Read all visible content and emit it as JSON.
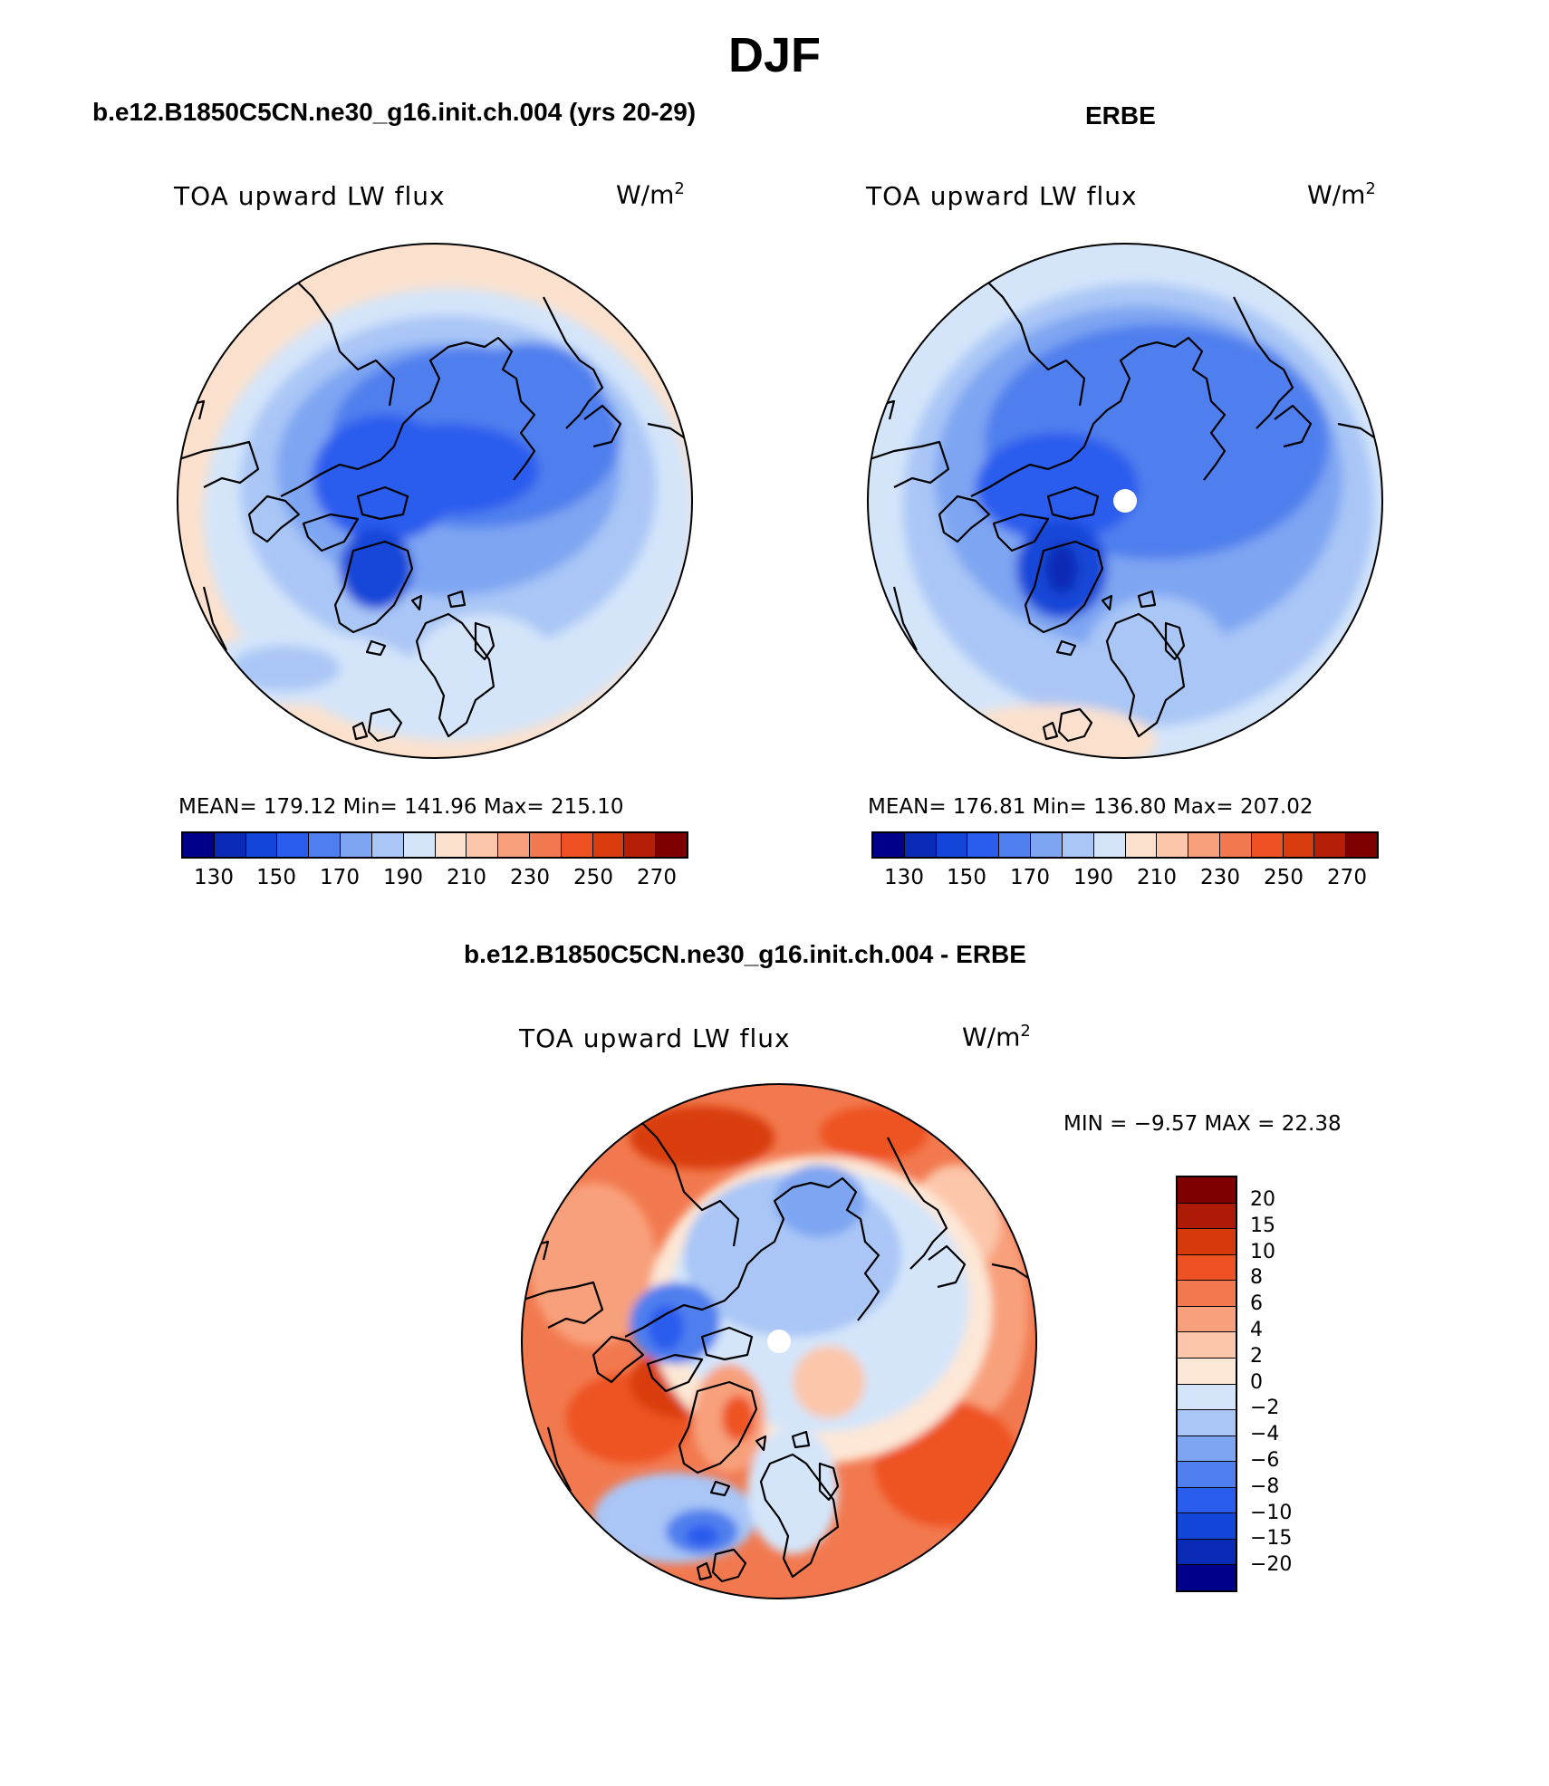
{
  "title": "DJF",
  "panels": {
    "model": {
      "title": "b.e12.B1850C5CN.ne30_g16.init.ch.004 (yrs 20-29)",
      "variable": "TOA upward LW flux",
      "units": "W/m",
      "units_sup": "2",
      "stats": "MEAN= 179.12   Min= 141.96   Max= 215.10"
    },
    "obs": {
      "title": "ERBE",
      "variable": "TOA upward LW flux",
      "units": "W/m",
      "units_sup": "2",
      "stats": "MEAN= 176.81   Min= 136.80   Max= 207.02"
    },
    "diff": {
      "title": "b.e12.B1850C5CN.ne30_g16.init.ch.004 - ERBE",
      "variable": "TOA upward LW flux",
      "units": "W/m",
      "units_sup": "2",
      "minmax": "MIN =   −9.57  MAX =   22.38"
    }
  },
  "colorbar_main": {
    "ticks": [
      "130",
      "150",
      "170",
      "190",
      "210",
      "230",
      "250",
      "270"
    ],
    "colors": [
      "#00008a",
      "#0a2bb5",
      "#1346d8",
      "#2a5cee",
      "#4f7fee",
      "#7ea5f2",
      "#a9c6f6",
      "#d4e5fa",
      "#fbe1cd",
      "#fcc6aa",
      "#f8a07b",
      "#f2794f",
      "#ee5222",
      "#d93c0e",
      "#b51f08",
      "#7f0000"
    ]
  },
  "colorbar_diff": {
    "ticks": [
      "20",
      "15",
      "10",
      "8",
      "6",
      "4",
      "2",
      "0",
      "−2",
      "−4",
      "−6",
      "−8",
      "−10",
      "−15",
      "−20"
    ],
    "colors": [
      "#7f0000",
      "#ad1a05",
      "#d73a0a",
      "#ee5222",
      "#f2794f",
      "#f8a07b",
      "#fcc6aa",
      "#fde7d6",
      "#d4e5fa",
      "#a9c6f6",
      "#7ea5f2",
      "#4f7fee",
      "#2a5cee",
      "#1346d8",
      "#0a2bb5",
      "#00008a"
    ]
  },
  "chart_data": {
    "type": "heatmap",
    "projection": "north polar stereographic",
    "season": "DJF",
    "variable": "TOA upward LW flux",
    "units": "W/m2",
    "maps": [
      {
        "name": "b.e12.B1850C5CN.ne30_g16.init.ch.004 (yrs 20-29)",
        "mean": 179.12,
        "min": 141.96,
        "max": 215.1,
        "levels": [
          130,
          140,
          150,
          160,
          170,
          180,
          190,
          200,
          210,
          220,
          230,
          240,
          250,
          260,
          270
        ]
      },
      {
        "name": "ERBE",
        "mean": 176.81,
        "min": 136.8,
        "max": 207.02,
        "levels": [
          130,
          140,
          150,
          160,
          170,
          180,
          190,
          200,
          210,
          220,
          230,
          240,
          250,
          260,
          270
        ]
      },
      {
        "name": "b.e12.B1850C5CN.ne30_g16.init.ch.004 - ERBE",
        "min": -9.57,
        "max": 22.38,
        "levels": [
          -20,
          -15,
          -10,
          -8,
          -6,
          -4,
          -2,
          0,
          2,
          4,
          6,
          8,
          10,
          15,
          20
        ]
      }
    ]
  }
}
